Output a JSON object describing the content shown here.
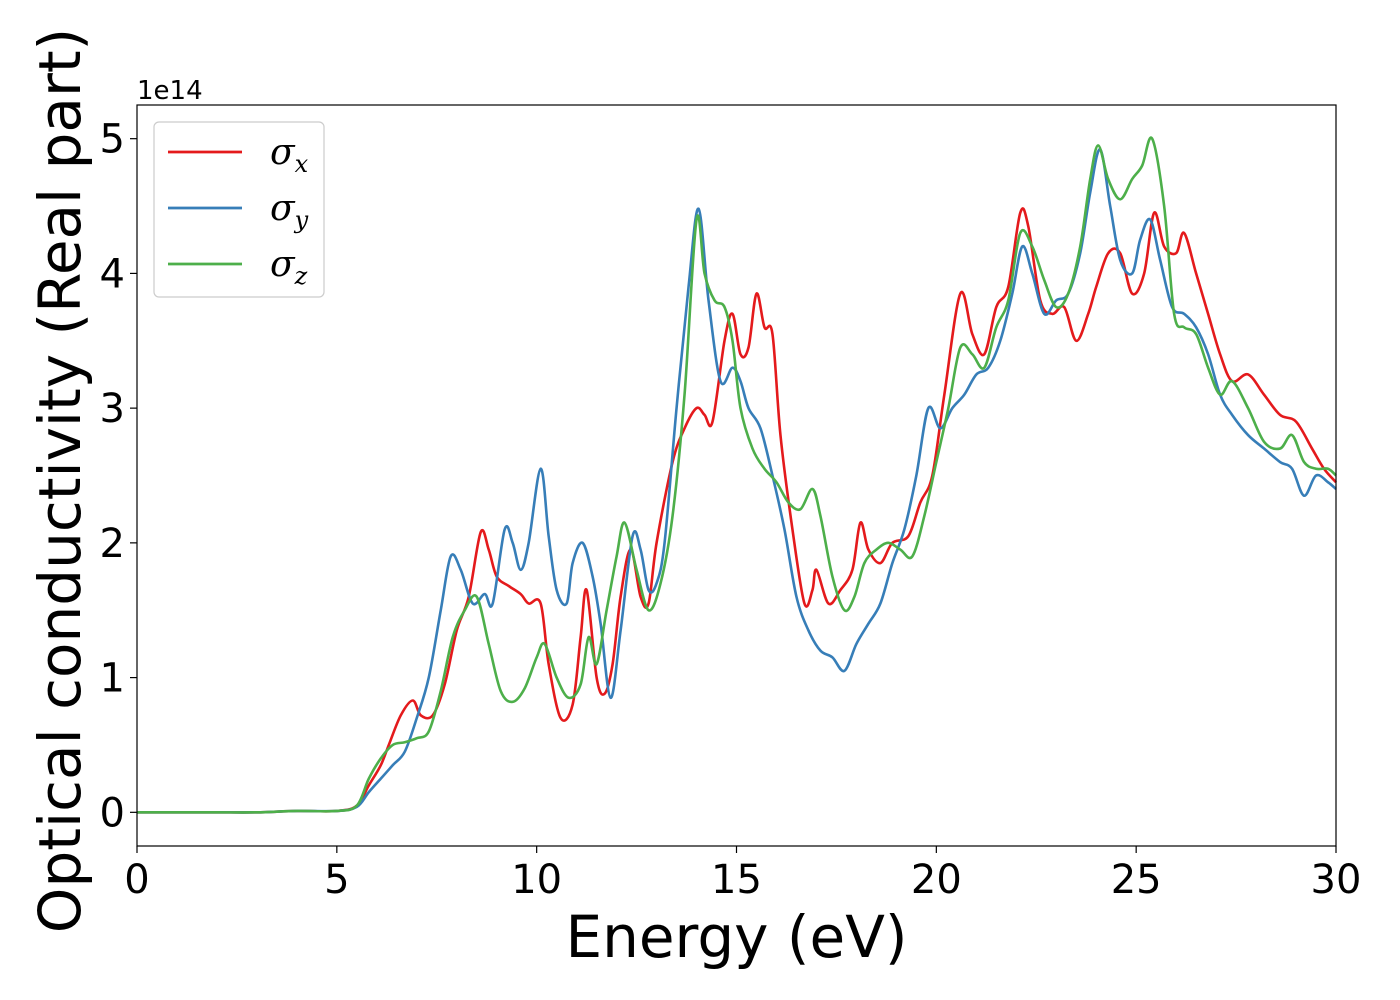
{
  "chart_data": {
    "type": "line",
    "xlabel": "Energy (eV)",
    "ylabel": "Optical conductivity (Real part)",
    "y_offset_text": "1e14",
    "xlim": [
      0,
      30
    ],
    "ylim": [
      -0.25,
      5.25
    ],
    "x_ticks": [
      0,
      5,
      10,
      15,
      20,
      25,
      30
    ],
    "x_tick_labels": [
      "0",
      "5",
      "10",
      "15",
      "20",
      "25",
      "30"
    ],
    "y_ticks": [
      0,
      1,
      2,
      3,
      4,
      5
    ],
    "y_tick_labels": [
      "0",
      "1",
      "2",
      "3",
      "4",
      "5"
    ],
    "grid": false,
    "legend_position": "top-left",
    "series": [
      {
        "name": "σ",
        "subscript": "x",
        "color": "#e41a1c",
        "points": [
          [
            0,
            0
          ],
          [
            1,
            0
          ],
          [
            2,
            0
          ],
          [
            3,
            0
          ],
          [
            4,
            0.01
          ],
          [
            5,
            0.01
          ],
          [
            5.5,
            0.05
          ],
          [
            5.8,
            0.2
          ],
          [
            6.1,
            0.35
          ],
          [
            6.3,
            0.5
          ],
          [
            6.6,
            0.72
          ],
          [
            6.9,
            0.83
          ],
          [
            7.1,
            0.72
          ],
          [
            7.4,
            0.72
          ],
          [
            7.7,
            0.95
          ],
          [
            8.0,
            1.35
          ],
          [
            8.3,
            1.6
          ],
          [
            8.6,
            2.08
          ],
          [
            8.8,
            1.95
          ],
          [
            9.0,
            1.75
          ],
          [
            9.3,
            1.68
          ],
          [
            9.6,
            1.62
          ],
          [
            9.8,
            1.55
          ],
          [
            10.1,
            1.55
          ],
          [
            10.3,
            1.1
          ],
          [
            10.6,
            0.7
          ],
          [
            10.9,
            0.8
          ],
          [
            11.1,
            1.3
          ],
          [
            11.25,
            1.65
          ],
          [
            11.5,
            1.0
          ],
          [
            11.7,
            0.88
          ],
          [
            11.9,
            1.1
          ],
          [
            12.1,
            1.6
          ],
          [
            12.35,
            1.95
          ],
          [
            12.6,
            1.6
          ],
          [
            12.8,
            1.55
          ],
          [
            13.0,
            2.0
          ],
          [
            13.4,
            2.6
          ],
          [
            13.7,
            2.85
          ],
          [
            14.0,
            3.0
          ],
          [
            14.2,
            2.95
          ],
          [
            14.4,
            2.9
          ],
          [
            14.7,
            3.5
          ],
          [
            14.9,
            3.7
          ],
          [
            15.1,
            3.4
          ],
          [
            15.3,
            3.45
          ],
          [
            15.5,
            3.85
          ],
          [
            15.7,
            3.6
          ],
          [
            15.9,
            3.55
          ],
          [
            16.1,
            2.8
          ],
          [
            16.4,
            2.1
          ],
          [
            16.7,
            1.55
          ],
          [
            16.9,
            1.65
          ],
          [
            17.0,
            1.8
          ],
          [
            17.3,
            1.55
          ],
          [
            17.6,
            1.65
          ],
          [
            17.9,
            1.8
          ],
          [
            18.1,
            2.15
          ],
          [
            18.3,
            1.95
          ],
          [
            18.6,
            1.85
          ],
          [
            18.9,
            2.0
          ],
          [
            19.3,
            2.05
          ],
          [
            19.6,
            2.3
          ],
          [
            19.9,
            2.5
          ],
          [
            20.2,
            3.1
          ],
          [
            20.6,
            3.85
          ],
          [
            20.9,
            3.55
          ],
          [
            21.2,
            3.4
          ],
          [
            21.5,
            3.75
          ],
          [
            21.8,
            3.9
          ],
          [
            22.1,
            4.45
          ],
          [
            22.3,
            4.35
          ],
          [
            22.6,
            3.8
          ],
          [
            22.9,
            3.7
          ],
          [
            23.2,
            3.75
          ],
          [
            23.5,
            3.5
          ],
          [
            23.8,
            3.7
          ],
          [
            24.0,
            3.9
          ],
          [
            24.3,
            4.15
          ],
          [
            24.6,
            4.15
          ],
          [
            24.9,
            3.85
          ],
          [
            25.2,
            4.0
          ],
          [
            25.45,
            4.45
          ],
          [
            25.7,
            4.2
          ],
          [
            26.0,
            4.15
          ],
          [
            26.2,
            4.3
          ],
          [
            26.5,
            4.0
          ],
          [
            26.8,
            3.7
          ],
          [
            27.1,
            3.4
          ],
          [
            27.4,
            3.2
          ],
          [
            27.8,
            3.25
          ],
          [
            28.2,
            3.1
          ],
          [
            28.6,
            2.95
          ],
          [
            29.0,
            2.9
          ],
          [
            29.4,
            2.7
          ],
          [
            29.7,
            2.55
          ],
          [
            30,
            2.45
          ]
        ]
      },
      {
        "name": "σ",
        "subscript": "y",
        "color": "#377eb8",
        "points": [
          [
            0,
            0
          ],
          [
            1,
            0
          ],
          [
            2,
            0
          ],
          [
            3,
            0
          ],
          [
            4,
            0.01
          ],
          [
            5,
            0.01
          ],
          [
            5.5,
            0.04
          ],
          [
            5.8,
            0.15
          ],
          [
            6.1,
            0.25
          ],
          [
            6.4,
            0.35
          ],
          [
            6.7,
            0.45
          ],
          [
            7.0,
            0.7
          ],
          [
            7.3,
            1.0
          ],
          [
            7.6,
            1.5
          ],
          [
            7.85,
            1.9
          ],
          [
            8.1,
            1.8
          ],
          [
            8.4,
            1.55
          ],
          [
            8.7,
            1.62
          ],
          [
            8.9,
            1.55
          ],
          [
            9.2,
            2.1
          ],
          [
            9.4,
            2.0
          ],
          [
            9.6,
            1.8
          ],
          [
            9.8,
            2.0
          ],
          [
            10.1,
            2.55
          ],
          [
            10.3,
            2.05
          ],
          [
            10.5,
            1.65
          ],
          [
            10.75,
            1.55
          ],
          [
            10.9,
            1.85
          ],
          [
            11.15,
            2.0
          ],
          [
            11.4,
            1.75
          ],
          [
            11.6,
            1.4
          ],
          [
            11.85,
            0.85
          ],
          [
            12.1,
            1.35
          ],
          [
            12.4,
            2.05
          ],
          [
            12.6,
            1.95
          ],
          [
            12.8,
            1.65
          ],
          [
            13.0,
            1.7
          ],
          [
            13.2,
            2.0
          ],
          [
            13.5,
            3.0
          ],
          [
            13.8,
            3.9
          ],
          [
            14.05,
            4.48
          ],
          [
            14.3,
            3.8
          ],
          [
            14.6,
            3.2
          ],
          [
            14.9,
            3.3
          ],
          [
            15.1,
            3.2
          ],
          [
            15.3,
            3.0
          ],
          [
            15.6,
            2.85
          ],
          [
            15.9,
            2.5
          ],
          [
            16.2,
            2.1
          ],
          [
            16.5,
            1.6
          ],
          [
            16.8,
            1.35
          ],
          [
            17.1,
            1.2
          ],
          [
            17.4,
            1.15
          ],
          [
            17.7,
            1.05
          ],
          [
            18.0,
            1.25
          ],
          [
            18.3,
            1.4
          ],
          [
            18.6,
            1.55
          ],
          [
            18.9,
            1.85
          ],
          [
            19.2,
            2.1
          ],
          [
            19.5,
            2.5
          ],
          [
            19.8,
            3.0
          ],
          [
            20.1,
            2.85
          ],
          [
            20.4,
            3.0
          ],
          [
            20.7,
            3.1
          ],
          [
            21.0,
            3.25
          ],
          [
            21.3,
            3.3
          ],
          [
            21.6,
            3.5
          ],
          [
            21.9,
            3.85
          ],
          [
            22.15,
            4.2
          ],
          [
            22.4,
            4.0
          ],
          [
            22.7,
            3.7
          ],
          [
            23.0,
            3.8
          ],
          [
            23.3,
            3.85
          ],
          [
            23.6,
            4.15
          ],
          [
            23.85,
            4.6
          ],
          [
            24.1,
            4.92
          ],
          [
            24.35,
            4.5
          ],
          [
            24.6,
            4.1
          ],
          [
            24.9,
            4.0
          ],
          [
            25.1,
            4.25
          ],
          [
            25.35,
            4.4
          ],
          [
            25.6,
            4.1
          ],
          [
            25.9,
            3.75
          ],
          [
            26.2,
            3.7
          ],
          [
            26.5,
            3.6
          ],
          [
            26.8,
            3.4
          ],
          [
            27.1,
            3.1
          ],
          [
            27.4,
            2.95
          ],
          [
            27.8,
            2.8
          ],
          [
            28.2,
            2.7
          ],
          [
            28.6,
            2.6
          ],
          [
            28.9,
            2.55
          ],
          [
            29.2,
            2.35
          ],
          [
            29.5,
            2.5
          ],
          [
            29.8,
            2.45
          ],
          [
            30,
            2.4
          ]
        ]
      },
      {
        "name": "σ",
        "subscript": "z",
        "color": "#4daf4a",
        "points": [
          [
            0,
            0
          ],
          [
            1,
            0
          ],
          [
            2,
            0
          ],
          [
            3,
            0
          ],
          [
            4,
            0.01
          ],
          [
            5,
            0.01
          ],
          [
            5.5,
            0.05
          ],
          [
            5.8,
            0.25
          ],
          [
            6.1,
            0.4
          ],
          [
            6.4,
            0.5
          ],
          [
            6.7,
            0.52
          ],
          [
            7.0,
            0.55
          ],
          [
            7.3,
            0.6
          ],
          [
            7.6,
            0.9
          ],
          [
            7.9,
            1.3
          ],
          [
            8.2,
            1.5
          ],
          [
            8.5,
            1.6
          ],
          [
            8.8,
            1.25
          ],
          [
            9.1,
            0.9
          ],
          [
            9.4,
            0.82
          ],
          [
            9.7,
            0.92
          ],
          [
            10.0,
            1.15
          ],
          [
            10.2,
            1.25
          ],
          [
            10.5,
            1.0
          ],
          [
            10.8,
            0.85
          ],
          [
            11.1,
            0.95
          ],
          [
            11.3,
            1.3
          ],
          [
            11.5,
            1.1
          ],
          [
            11.75,
            1.5
          ],
          [
            12.0,
            1.9
          ],
          [
            12.2,
            2.15
          ],
          [
            12.5,
            1.8
          ],
          [
            12.8,
            1.5
          ],
          [
            13.1,
            1.7
          ],
          [
            13.4,
            2.2
          ],
          [
            13.7,
            3.1
          ],
          [
            14.0,
            4.4
          ],
          [
            14.2,
            4.0
          ],
          [
            14.45,
            3.8
          ],
          [
            14.7,
            3.75
          ],
          [
            14.9,
            3.5
          ],
          [
            15.1,
            3.0
          ],
          [
            15.4,
            2.7
          ],
          [
            15.7,
            2.55
          ],
          [
            16.0,
            2.45
          ],
          [
            16.3,
            2.3
          ],
          [
            16.6,
            2.25
          ],
          [
            16.9,
            2.4
          ],
          [
            17.1,
            2.2
          ],
          [
            17.4,
            1.75
          ],
          [
            17.7,
            1.5
          ],
          [
            17.95,
            1.6
          ],
          [
            18.2,
            1.85
          ],
          [
            18.5,
            1.95
          ],
          [
            18.8,
            2.0
          ],
          [
            19.1,
            1.95
          ],
          [
            19.4,
            1.9
          ],
          [
            19.7,
            2.2
          ],
          [
            20.0,
            2.6
          ],
          [
            20.3,
            3.0
          ],
          [
            20.6,
            3.45
          ],
          [
            20.9,
            3.4
          ],
          [
            21.2,
            3.3
          ],
          [
            21.5,
            3.6
          ],
          [
            21.8,
            3.8
          ],
          [
            22.1,
            4.3
          ],
          [
            22.4,
            4.2
          ],
          [
            22.7,
            3.95
          ],
          [
            23.0,
            3.75
          ],
          [
            23.3,
            3.85
          ],
          [
            23.6,
            4.2
          ],
          [
            23.85,
            4.7
          ],
          [
            24.05,
            4.95
          ],
          [
            24.3,
            4.7
          ],
          [
            24.6,
            4.55
          ],
          [
            24.9,
            4.7
          ],
          [
            25.15,
            4.8
          ],
          [
            25.4,
            5.0
          ],
          [
            25.7,
            4.5
          ],
          [
            25.95,
            3.7
          ],
          [
            26.2,
            3.6
          ],
          [
            26.5,
            3.55
          ],
          [
            26.8,
            3.3
          ],
          [
            27.1,
            3.1
          ],
          [
            27.4,
            3.2
          ],
          [
            27.8,
            3.0
          ],
          [
            28.2,
            2.75
          ],
          [
            28.6,
            2.7
          ],
          [
            28.9,
            2.8
          ],
          [
            29.2,
            2.6
          ],
          [
            29.5,
            2.55
          ],
          [
            29.8,
            2.55
          ],
          [
            30,
            2.5
          ]
        ]
      }
    ]
  }
}
